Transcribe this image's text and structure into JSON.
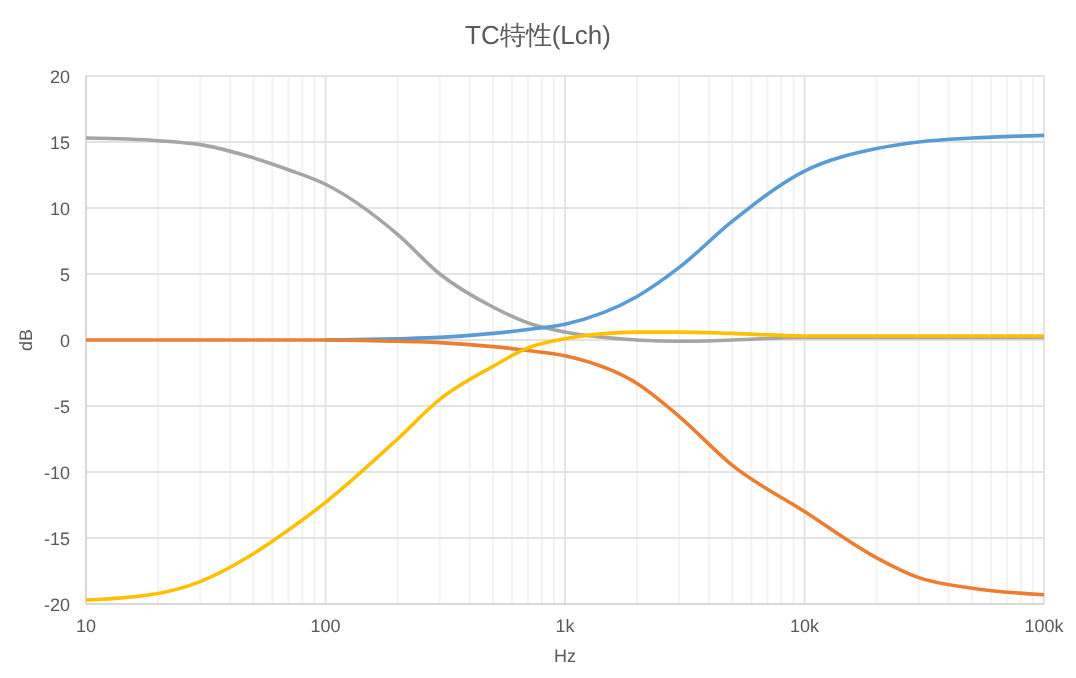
{
  "chart_data": {
    "type": "line",
    "title": "TC特性(Lch)",
    "xlabel": "Hz",
    "ylabel": "dB",
    "log": "x",
    "grid": true,
    "marker": "none",
    "line_style": "solid",
    "xlim": [
      10,
      100000
    ],
    "xticks": [
      10,
      100,
      {
        "value": 1000,
        "label": "1k"
      },
      {
        "value": 10000,
        "label": "10k"
      },
      {
        "value": 100000,
        "label": "100k"
      }
    ],
    "ylim": [
      -20,
      20
    ],
    "yticks": [
      -20,
      -15,
      -10,
      -5,
      0,
      5,
      10,
      15,
      20
    ],
    "x": [
      10,
      20,
      30,
      50,
      70,
      100,
      200,
      300,
      500,
      700,
      1000,
      2000,
      3000,
      5000,
      10000,
      20000,
      30000,
      50000,
      100000
    ],
    "series": [
      {
        "color": "#a5a5a5",
        "values": [
          15.3,
          15.1,
          14.8,
          13.8,
          12.9,
          11.8,
          8,
          5,
          2.5,
          1.3,
          0.6,
          0,
          -0.1,
          0,
          0.2,
          0.2,
          0.2,
          0.2,
          0.2
        ]
      },
      {
        "color": "#5b9bd5",
        "values": [
          null,
          null,
          null,
          null,
          null,
          0,
          0.1,
          0.2,
          0.5,
          0.8,
          1.2,
          3.3,
          5.5,
          9,
          12.8,
          14.5,
          15,
          15.3,
          15.5
        ]
      },
      {
        "color": "#ed7d31",
        "values": [
          0,
          0,
          0,
          0,
          0,
          0,
          -0.1,
          -0.2,
          -0.5,
          -0.8,
          -1.2,
          -3.3,
          -5.8,
          -9.5,
          -13,
          -16.5,
          -18,
          -18.8,
          -19.3
        ]
      },
      {
        "color": "#ffc000",
        "values": [
          -19.7,
          -19.2,
          -18.3,
          -16.2,
          -14.4,
          -12.3,
          -7.5,
          -4.5,
          -2,
          -0.6,
          0.1,
          0.6,
          0.6,
          0.5,
          0.3,
          0.3,
          0.3,
          0.3,
          0.3
        ]
      }
    ]
  }
}
